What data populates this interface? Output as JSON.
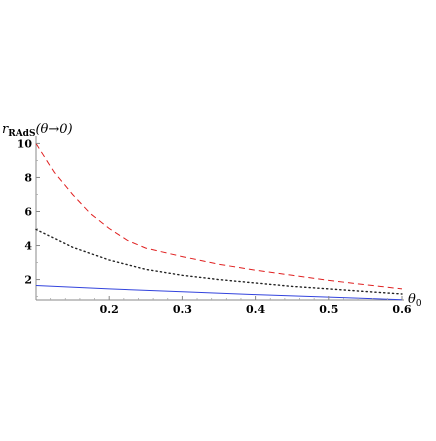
{
  "chart_data": {
    "type": "line",
    "title": "",
    "xlabel": "θ₀",
    "ylabel": "r_RAdS(θ→0)",
    "ylabel_main": "r",
    "ylabel_sub": "RAdS",
    "ylabel_args": "(θ→0)",
    "xlabel_main": "θ",
    "xlabel_sub": "0",
    "xlim": [
      0.1,
      0.6
    ],
    "ylim": [
      0.8,
      10.2
    ],
    "x_ticks": [
      0.2,
      0.3,
      0.4,
      0.5,
      0.6
    ],
    "x_tick_labels": [
      "0.2",
      "0.3",
      "0.4",
      "0.5",
      "0.6"
    ],
    "y_ticks": [
      2,
      4,
      6,
      8,
      10
    ],
    "y_tick_labels": [
      "2",
      "4",
      "6",
      "8",
      "10"
    ],
    "grid": false,
    "legend": "none",
    "series": [
      {
        "style": "dashed",
        "color": "#e02020",
        "points": [
          [
            0.1,
            10.0
          ],
          [
            0.125,
            8.3
          ],
          [
            0.15,
            7.0
          ],
          [
            0.175,
            5.85
          ],
          [
            0.2,
            5.0
          ],
          [
            0.225,
            4.3
          ],
          [
            0.25,
            3.85
          ],
          [
            0.3,
            3.35
          ],
          [
            0.35,
            2.9
          ],
          [
            0.4,
            2.55
          ],
          [
            0.45,
            2.25
          ],
          [
            0.5,
            1.95
          ],
          [
            0.55,
            1.7
          ],
          [
            0.6,
            1.45
          ]
        ]
      },
      {
        "style": "dotted",
        "color": "#222222",
        "points": [
          [
            0.1,
            4.95
          ],
          [
            0.15,
            3.9
          ],
          [
            0.2,
            3.15
          ],
          [
            0.25,
            2.6
          ],
          [
            0.3,
            2.25
          ],
          [
            0.35,
            2.0
          ],
          [
            0.4,
            1.8
          ],
          [
            0.45,
            1.6
          ],
          [
            0.5,
            1.45
          ],
          [
            0.55,
            1.3
          ],
          [
            0.6,
            1.15
          ]
        ]
      },
      {
        "style": "solid",
        "color": "#3344dd",
        "points": [
          [
            0.1,
            1.65
          ],
          [
            0.2,
            1.45
          ],
          [
            0.3,
            1.28
          ],
          [
            0.4,
            1.12
          ],
          [
            0.5,
            0.97
          ],
          [
            0.6,
            0.82
          ]
        ]
      }
    ]
  }
}
